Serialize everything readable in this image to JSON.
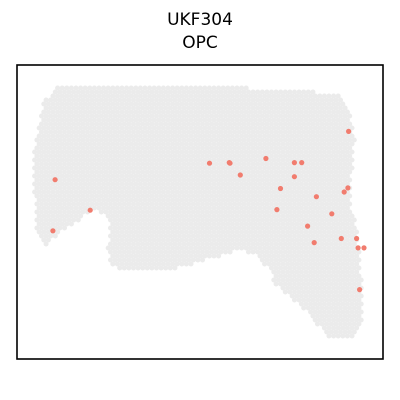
{
  "chart_data": {
    "type": "scatter",
    "title": "UKF304",
    "subtitle": "OPC",
    "xlabel": "",
    "ylabel": "",
    "grid": false,
    "legend": "none",
    "xlim": [
      0,
      100
    ],
    "ylim": [
      0,
      100
    ],
    "colors": {
      "background_spots": "#ebebeb",
      "highlight_spots": "#f17c6e",
      "frame": "#000000"
    },
    "series": [
      {
        "values": [
          [
            10.4,
            61.0
          ],
          [
            20.0,
            50.6
          ],
          [
            9.8,
            43.6
          ],
          [
            52.6,
            66.6
          ],
          [
            58.0,
            66.8
          ],
          [
            58.2,
            66.6
          ],
          [
            61.0,
            62.6
          ],
          [
            68.0,
            68.2
          ],
          [
            75.8,
            66.8
          ],
          [
            75.8,
            62.0
          ],
          [
            77.8,
            66.8
          ],
          [
            72.0,
            58.0
          ],
          [
            71.0,
            50.8
          ],
          [
            90.6,
            77.4
          ],
          [
            90.4,
            58.2
          ],
          [
            89.4,
            56.8
          ],
          [
            81.8,
            55.2
          ],
          [
            86.0,
            49.4
          ],
          [
            79.4,
            45.2
          ],
          [
            81.2,
            39.6
          ],
          [
            88.6,
            41.0
          ],
          [
            92.8,
            41.0
          ],
          [
            93.2,
            37.8
          ],
          [
            94.8,
            37.8
          ],
          [
            93.6,
            23.6
          ]
        ]
      }
    ]
  }
}
